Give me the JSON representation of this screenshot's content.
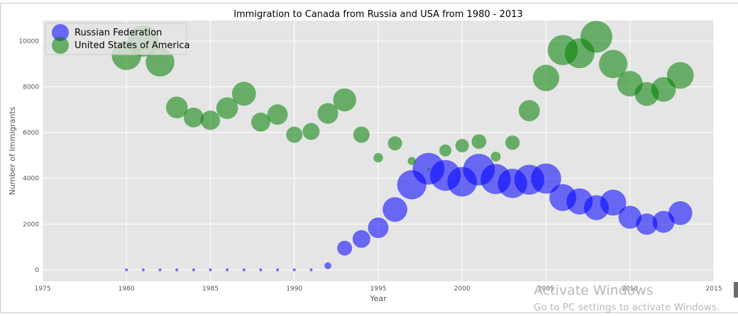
{
  "chart_data": {
    "type": "scatter",
    "title": "Immigration to Canada from Russia and USA from 1980 - 2013",
    "xlabel": "Year",
    "ylabel": "Number of Immigrants",
    "xlim": [
      1975,
      2015
    ],
    "ylim": [
      -500,
      10900
    ],
    "xticks": [
      1975,
      1980,
      1985,
      1990,
      1995,
      2000,
      2005,
      2010,
      2015
    ],
    "yticks": [
      0,
      2000,
      4000,
      6000,
      8000,
      10000
    ],
    "grid": true,
    "legend_position": "top-left",
    "x": [
      1980,
      1981,
      1982,
      1983,
      1984,
      1985,
      1986,
      1987,
      1988,
      1989,
      1990,
      1991,
      1992,
      1993,
      1994,
      1995,
      1996,
      1997,
      1998,
      1999,
      2000,
      2001,
      2002,
      2003,
      2004,
      2005,
      2006,
      2007,
      2008,
      2009,
      2010,
      2011,
      2012,
      2013
    ],
    "series": [
      {
        "name": "Russian Federation",
        "color": "#0000ff",
        "values": [
          0,
          0,
          0,
          0,
          0,
          0,
          0,
          0,
          0,
          0,
          0,
          0,
          180,
          950,
          1350,
          1840,
          2640,
          3720,
          4420,
          4130,
          3850,
          4380,
          3970,
          3780,
          3940,
          3990,
          3160,
          2990,
          2720,
          2940,
          2300,
          2000,
          2100,
          2480
        ]
      },
      {
        "name": "United States of America",
        "color": "#008000",
        "values": [
          9380,
          10010,
          9080,
          7100,
          6660,
          6540,
          7070,
          7700,
          6460,
          6790,
          5910,
          6050,
          6840,
          7430,
          5910,
          4900,
          5530,
          4760,
          4410,
          5220,
          5430,
          5610,
          4950,
          5560,
          6960,
          8390,
          9610,
          9470,
          10190,
          9000,
          8140,
          7690,
          7890,
          8500
        ]
      }
    ]
  },
  "watermark": {
    "title": "Activate Windows",
    "subtitle": "Go to PC settings to activate Windows."
  }
}
